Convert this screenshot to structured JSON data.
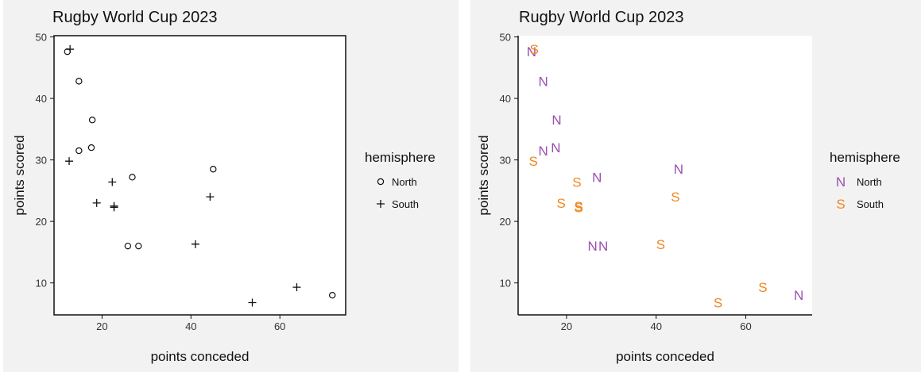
{
  "chart_data": [
    {
      "type": "scatter",
      "encoding": "shape",
      "title": "Rugby World Cup 2023",
      "xlabel": "points conceded",
      "ylabel": "points scored",
      "xlim": [
        9.2,
        74.8
      ],
      "ylim": [
        4.8,
        50.2
      ],
      "xticks": [
        20,
        40,
        60
      ],
      "yticks": [
        10,
        20,
        30,
        40,
        50
      ],
      "grid": false,
      "legend": {
        "title": "hemisphere",
        "position": "right",
        "entries": [
          {
            "name": "North",
            "marker": "circle"
          },
          {
            "name": "South",
            "marker": "plus"
          }
        ]
      },
      "series": [
        {
          "name": "North",
          "points": [
            {
              "x": 12.2,
              "y": 47.6
            },
            {
              "x": 14.8,
              "y": 42.8
            },
            {
              "x": 17.8,
              "y": 36.5
            },
            {
              "x": 14.8,
              "y": 31.5
            },
            {
              "x": 17.6,
              "y": 32.0
            },
            {
              "x": 26.8,
              "y": 27.2
            },
            {
              "x": 45.0,
              "y": 28.5
            },
            {
              "x": 25.8,
              "y": 16.0
            },
            {
              "x": 28.2,
              "y": 16.0
            },
            {
              "x": 71.8,
              "y": 8.0
            }
          ]
        },
        {
          "name": "South",
          "points": [
            {
              "x": 12.8,
              "y": 48.0
            },
            {
              "x": 12.6,
              "y": 29.8
            },
            {
              "x": 22.3,
              "y": 26.4
            },
            {
              "x": 18.8,
              "y": 23.0
            },
            {
              "x": 22.7,
              "y": 22.5
            },
            {
              "x": 22.7,
              "y": 22.3
            },
            {
              "x": 44.3,
              "y": 24.0
            },
            {
              "x": 41.0,
              "y": 16.3
            },
            {
              "x": 53.8,
              "y": 6.8
            },
            {
              "x": 63.8,
              "y": 9.3
            }
          ]
        }
      ]
    },
    {
      "type": "scatter",
      "encoding": "letter",
      "title": "Rugby World Cup 2023",
      "xlabel": "points conceded",
      "ylabel": "points scored",
      "xlim": [
        9.2,
        74.8
      ],
      "ylim": [
        4.8,
        50.2
      ],
      "xticks": [
        20,
        40,
        60
      ],
      "yticks": [
        10,
        20,
        30,
        40,
        50
      ],
      "grid": false,
      "legend": {
        "title": "hemisphere",
        "position": "right",
        "entries": [
          {
            "name": "North",
            "marker": "N",
            "color": "#9b4fb0"
          },
          {
            "name": "South",
            "marker": "S",
            "color": "#f0861e"
          }
        ]
      },
      "series": [
        {
          "name": "North",
          "letter": "N",
          "color": "#9b4fb0",
          "points": [
            {
              "x": 12.2,
              "y": 47.6
            },
            {
              "x": 14.8,
              "y": 42.8
            },
            {
              "x": 17.8,
              "y": 36.5
            },
            {
              "x": 14.8,
              "y": 31.5
            },
            {
              "x": 17.6,
              "y": 32.0
            },
            {
              "x": 26.8,
              "y": 27.2
            },
            {
              "x": 45.0,
              "y": 28.5
            },
            {
              "x": 25.8,
              "y": 16.0
            },
            {
              "x": 28.2,
              "y": 16.0
            },
            {
              "x": 71.8,
              "y": 8.0
            }
          ]
        },
        {
          "name": "South",
          "letter": "S",
          "color": "#f0861e",
          "points": [
            {
              "x": 12.8,
              "y": 48.0
            },
            {
              "x": 12.6,
              "y": 29.8
            },
            {
              "x": 22.3,
              "y": 26.4
            },
            {
              "x": 18.8,
              "y": 23.0
            },
            {
              "x": 22.7,
              "y": 22.5
            },
            {
              "x": 22.7,
              "y": 22.3
            },
            {
              "x": 44.3,
              "y": 24.0
            },
            {
              "x": 41.0,
              "y": 16.3
            },
            {
              "x": 53.8,
              "y": 6.8
            },
            {
              "x": 63.8,
              "y": 9.3
            }
          ]
        }
      ]
    }
  ]
}
